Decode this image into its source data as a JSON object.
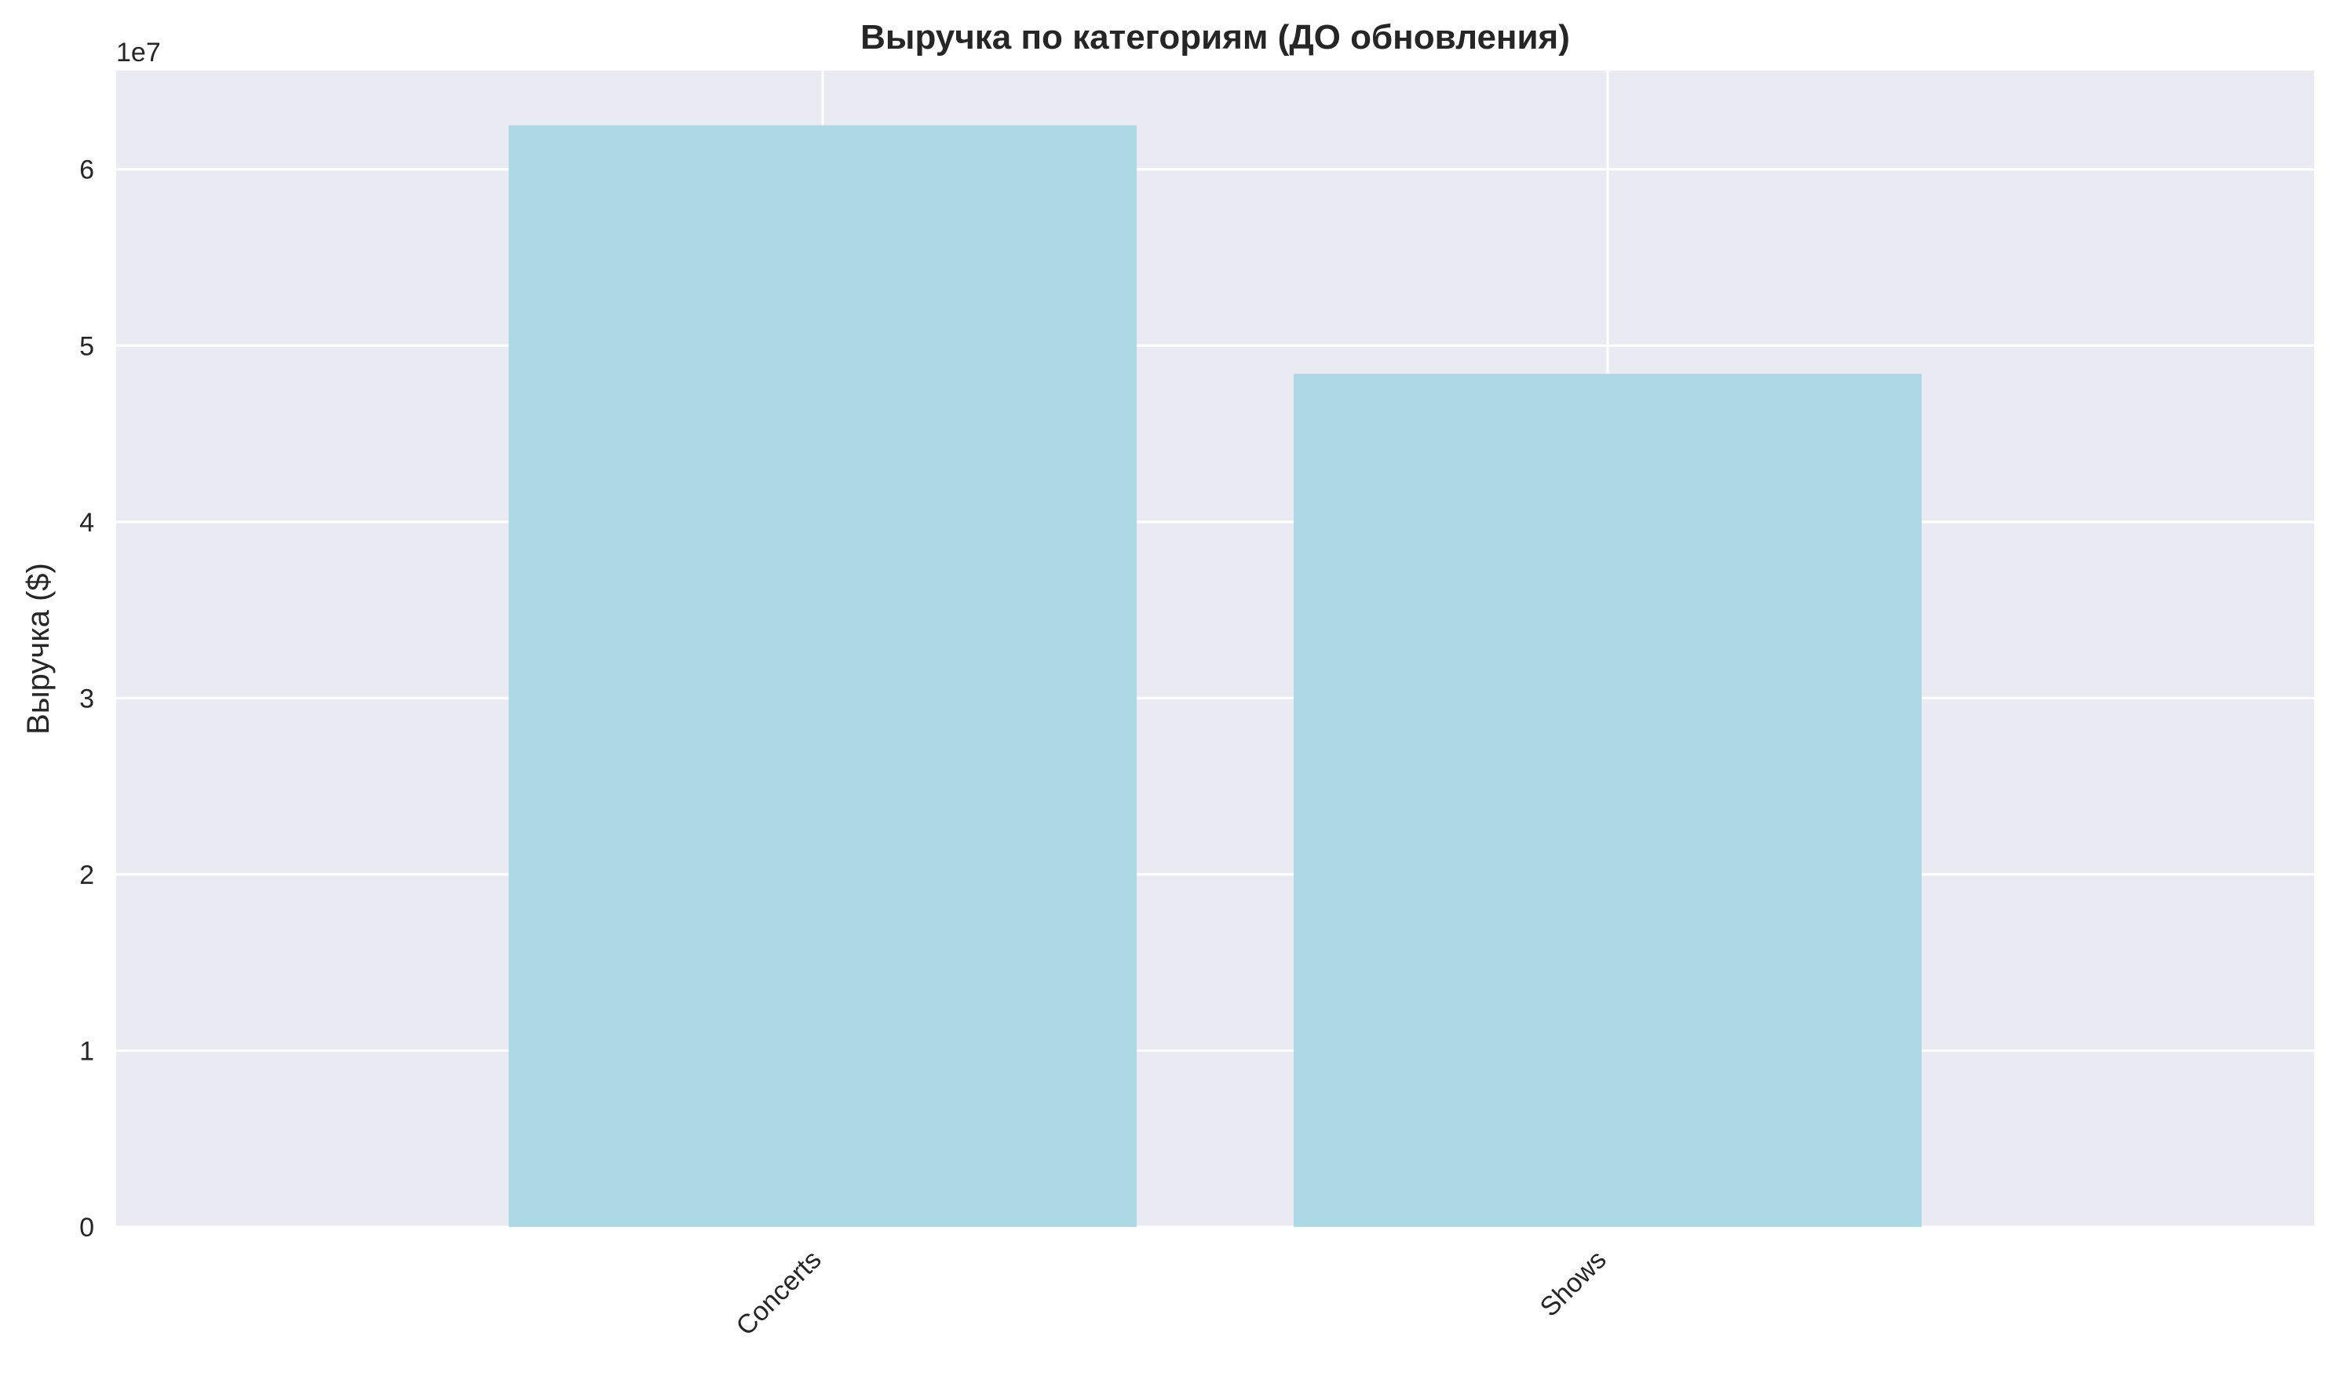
{
  "chart_data": {
    "type": "bar",
    "title": "Выручка по категориям (ДО обновления)",
    "xlabel": "",
    "ylabel": "Выручка ($)",
    "y_offset_label": "1e7",
    "categories": [
      "Concerts",
      "Shows"
    ],
    "values": [
      62500000,
      48400000
    ],
    "ylim": [
      0,
      65600000
    ],
    "yticks": [
      0,
      10000000,
      20000000,
      30000000,
      40000000,
      50000000,
      60000000
    ],
    "ytick_labels": [
      "0",
      "1",
      "2",
      "3",
      "4",
      "5",
      "6"
    ],
    "grid": true,
    "legend": "none",
    "colors": {
      "bar": "#add8e6",
      "plot_background": "#eaeaf2",
      "grid": "#ffffff",
      "text": "#262626"
    }
  }
}
